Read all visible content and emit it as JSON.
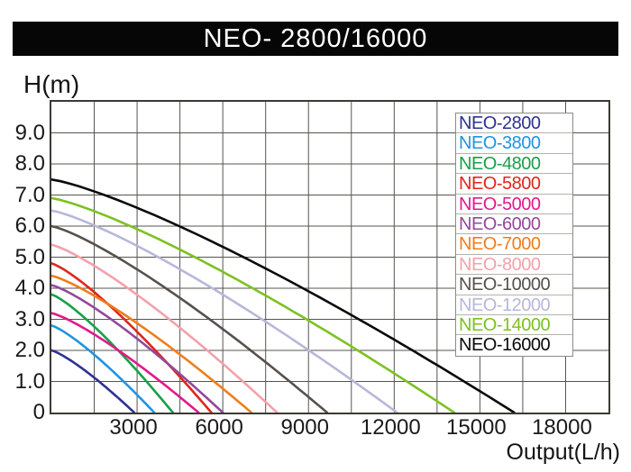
{
  "title": "NEO- 2800/16000",
  "axes": {
    "y_label": "H(m)",
    "x_label": "Output(L/h)",
    "y_ticks": [
      {
        "label": "9.0",
        "value": 9
      },
      {
        "label": "8.0",
        "value": 8
      },
      {
        "label": "7.0",
        "value": 7
      },
      {
        "label": "6.0",
        "value": 6
      },
      {
        "label": "5.0",
        "value": 5
      },
      {
        "label": "4.0",
        "value": 4
      },
      {
        "label": "3.0",
        "value": 3
      },
      {
        "label": "2.0",
        "value": 2
      },
      {
        "label": "1.0",
        "value": 1
      },
      {
        "label": "0",
        "value": 0
      }
    ],
    "x_ticks": [
      {
        "label": "3000",
        "value": 3000
      },
      {
        "label": "6000",
        "value": 6000
      },
      {
        "label": "9000",
        "value": 9000
      },
      {
        "label": "12000",
        "value": 12000
      },
      {
        "label": "15000",
        "value": 15000
      },
      {
        "label": "18000",
        "value": 18000
      }
    ]
  },
  "chart_data": {
    "type": "line",
    "title": "NEO- 2800/16000",
    "xlabel": "Output(L/h)",
    "ylabel": "H(m)",
    "xlim": [
      0,
      19500
    ],
    "ylim": [
      0,
      10
    ],
    "x_grid_step": 1500,
    "y_grid_step": 1,
    "grid": true,
    "legend_position": "upper-right",
    "curve_model": "H = max_head_m * (1 - (F / max_flow_lh) ^ curve_exponent), F from 0 to max_flow_lh",
    "series": [
      {
        "name": "NEO-2800",
        "color": "#2e3192",
        "max_head_m": 2.0,
        "max_flow_lh": 2900,
        "curve_exponent": 1.25
      },
      {
        "name": "NEO-3800",
        "color": "#1e95e0",
        "max_head_m": 2.8,
        "max_flow_lh": 3600,
        "curve_exponent": 1.25
      },
      {
        "name": "NEO-4800",
        "color": "#18a049",
        "max_head_m": 3.8,
        "max_flow_lh": 4250,
        "curve_exponent": 1.25
      },
      {
        "name": "NEO-5800",
        "color": "#e1251b",
        "max_head_m": 4.8,
        "max_flow_lh": 5600,
        "curve_exponent": 1.25
      },
      {
        "name": "NEO-5000",
        "color": "#e3188c",
        "max_head_m": 3.2,
        "max_flow_lh": 5150,
        "curve_exponent": 1.25
      },
      {
        "name": "NEO-6000",
        "color": "#93489b",
        "max_head_m": 4.1,
        "max_flow_lh": 6000,
        "curve_exponent": 1.25
      },
      {
        "name": "NEO-7000",
        "color": "#ef7d1b",
        "max_head_m": 4.4,
        "max_flow_lh": 7000,
        "curve_exponent": 1.25
      },
      {
        "name": "NEO-8000",
        "color": "#f4a0ab",
        "max_head_m": 5.4,
        "max_flow_lh": 7900,
        "curve_exponent": 1.25
      },
      {
        "name": "NEO-10000",
        "color": "#57504d",
        "max_head_m": 6.0,
        "max_flow_lh": 9650,
        "curve_exponent": 1.25
      },
      {
        "name": "NEO-12000",
        "color": "#b7b7da",
        "max_head_m": 6.5,
        "max_flow_lh": 12100,
        "curve_exponent": 1.25
      },
      {
        "name": "NEO-14000",
        "color": "#7dc122",
        "max_head_m": 6.9,
        "max_flow_lh": 14100,
        "curve_exponent": 1.25
      },
      {
        "name": "NEO-16000",
        "color": "#0a0a0a",
        "max_head_m": 7.5,
        "max_flow_lh": 16200,
        "curve_exponent": 1.25
      }
    ]
  },
  "colors": {
    "title_bar_bg": "#060606",
    "title_text": "#ffffff",
    "grid": "#55544e",
    "plot_border": "#3a3934",
    "tick_text": "#1b1a18",
    "legend_border": "#8c8c86",
    "legend_bg": "#ffffff"
  }
}
